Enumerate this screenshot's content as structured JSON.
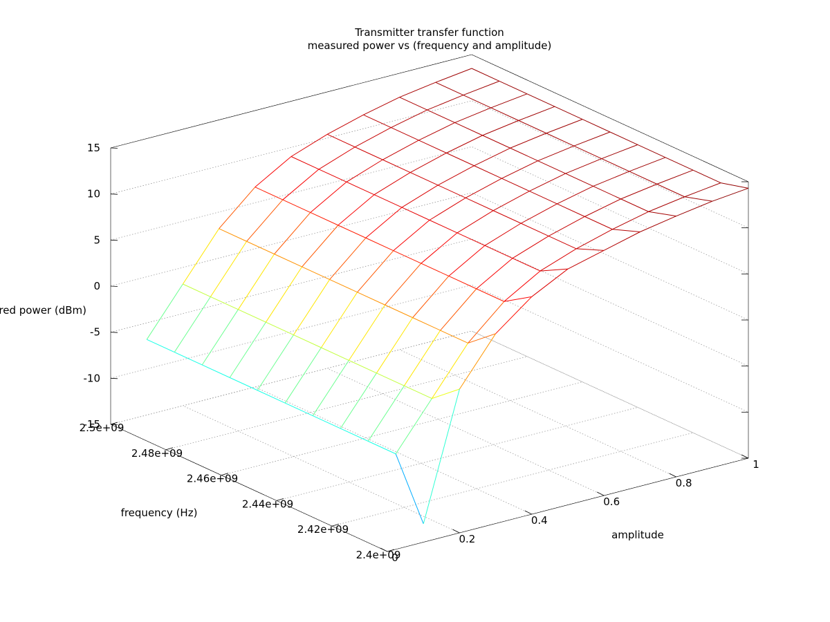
{
  "chart_data": {
    "type": "surface",
    "title": "Transmitter transfer function",
    "subtitle": "measured power vs (frequency and amplitude)",
    "xlabel": "amplitude",
    "ylabel": "frequency (Hz)",
    "zlabel": "measured power (dBm)",
    "xlim": [
      0,
      1
    ],
    "ylim": [
      2400000000,
      2500000000
    ],
    "zlim": [
      -15,
      15
    ],
    "x_ticks": [
      "0",
      "0.2",
      "0.4",
      "0.6",
      "0.8",
      "1"
    ],
    "y_ticks": [
      "2.4e+09",
      "2.42e+09",
      "2.44e+09",
      "2.46e+09",
      "2.48e+09",
      "2.5e+09"
    ],
    "z_ticks": [
      "-15",
      "-10",
      "-5",
      "0",
      "5",
      "10",
      "15"
    ],
    "colormap": [
      "#0000ff",
      "#00ffff",
      "#ffff00",
      "#ff0000",
      "#800000"
    ],
    "amplitude": [
      0.1,
      0.2,
      0.3,
      0.4,
      0.5,
      0.6,
      0.7,
      0.8,
      0.9,
      1.0
    ],
    "frequency": [
      2400000000,
      2410000000,
      2420000000,
      2430000000,
      2440000000,
      2450000000,
      2460000000,
      2470000000,
      2480000000,
      2490000000,
      2500000000
    ],
    "power_dbm": [
      [
        -13.0,
        0.6,
        5.6,
        8.6,
        10.6,
        11.6,
        12.6,
        13.3,
        13.9,
        14.3
      ],
      [
        -6.8,
        -1.8,
        3.2,
        6.7,
        9.0,
        10.4,
        11.5,
        12.4,
        13.0,
        13.5
      ],
      [
        -6.8,
        -1.8,
        3.2,
        6.7,
        9.0,
        10.4,
        11.5,
        12.4,
        13.0,
        13.5
      ],
      [
        -6.8,
        -1.8,
        3.2,
        6.7,
        9.0,
        10.4,
        11.5,
        12.4,
        13.0,
        13.5
      ],
      [
        -6.8,
        -1.8,
        3.2,
        6.7,
        9.0,
        10.4,
        11.5,
        12.4,
        13.0,
        13.5
      ],
      [
        -6.8,
        -1.8,
        3.2,
        6.7,
        9.0,
        10.4,
        11.5,
        12.4,
        13.0,
        13.5
      ],
      [
        -6.8,
        -1.8,
        3.2,
        6.7,
        9.0,
        10.4,
        11.5,
        12.4,
        13.0,
        13.5
      ],
      [
        -6.8,
        -1.8,
        3.2,
        6.7,
        9.0,
        10.4,
        11.5,
        12.4,
        13.0,
        13.5
      ],
      [
        -6.8,
        -1.8,
        3.2,
        6.7,
        9.0,
        10.4,
        11.5,
        12.4,
        13.0,
        13.5
      ],
      [
        -6.8,
        -1.8,
        3.2,
        6.7,
        9.0,
        10.4,
        11.5,
        12.4,
        13.0,
        13.5
      ],
      [
        -6.8,
        -1.8,
        3.2,
        6.7,
        9.0,
        10.4,
        11.5,
        12.4,
        13.0,
        13.5
      ]
    ],
    "grid": true
  }
}
